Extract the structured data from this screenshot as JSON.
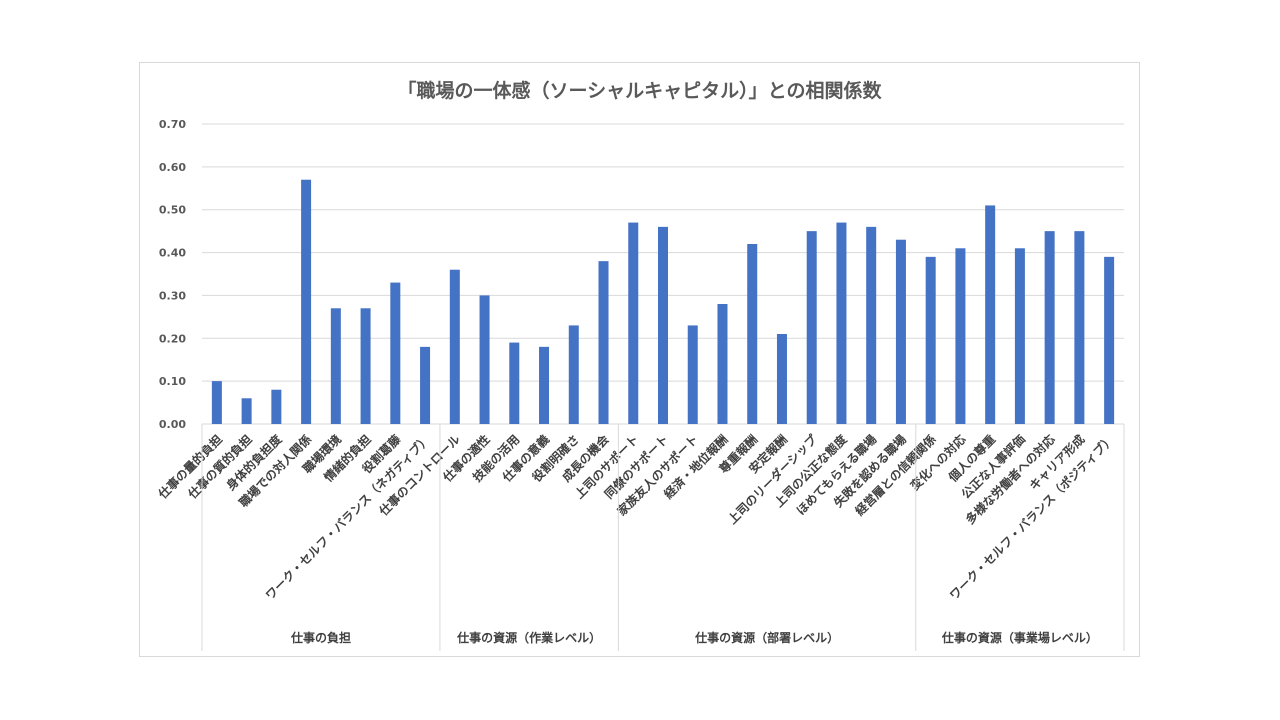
{
  "chart_data": {
    "type": "bar",
    "title": "「職場の一体感（ソーシャルキャピタル）」との相関係数",
    "ylim": [
      0,
      0.7
    ],
    "yticks": [
      "0.70",
      "0.60",
      "0.50",
      "0.40",
      "0.30",
      "0.20",
      "0.10",
      "0.00"
    ],
    "grid": true,
    "bar_color": "#4472c4",
    "categories": [
      "仕事の量的負担",
      "仕事の質的負担",
      "身体的負担度",
      "職場での対人関係",
      "職場環境",
      "情緒的負担",
      "役割葛藤",
      "ワーク・セルフ・バランス（ネガティブ）",
      "仕事のコントロール",
      "仕事の適性",
      "技能の活用",
      "仕事の意義",
      "役割明確さ",
      "成長の機会",
      "上司のサポート",
      "同僚のサポート",
      "家族友人のサポート",
      "経済・地位報酬",
      "尊重報酬",
      "安定報酬",
      "上司のリーダーシップ",
      "上司の公正な態度",
      "ほめてもらえる職場",
      "失敗を認める職場",
      "経営層との信頼関係",
      "変化への対応",
      "個人の尊重",
      "公正な人事評価",
      "多様な労働者への対応",
      "キャリア形成",
      "ワーク・セルフ・バランス（ポジティブ）"
    ],
    "values": [
      0.1,
      0.06,
      0.08,
      0.57,
      0.27,
      0.27,
      0.33,
      0.18,
      0.36,
      0.3,
      0.19,
      0.18,
      0.23,
      0.38,
      0.47,
      0.46,
      0.23,
      0.28,
      0.42,
      0.21,
      0.45,
      0.47,
      0.46,
      0.43,
      0.39,
      0.41,
      0.51,
      0.41,
      0.45,
      0.45,
      0.39
    ],
    "groups": [
      {
        "label": "仕事の負担",
        "start": 0,
        "count": 8
      },
      {
        "label": "仕事の資源（作業レベル）",
        "start": 8,
        "count": 6
      },
      {
        "label": "仕事の資源（部署レベル）",
        "start": 14,
        "count": 10
      },
      {
        "label": "仕事の資源（事業場レベル）",
        "start": 24,
        "count": 7
      }
    ]
  }
}
